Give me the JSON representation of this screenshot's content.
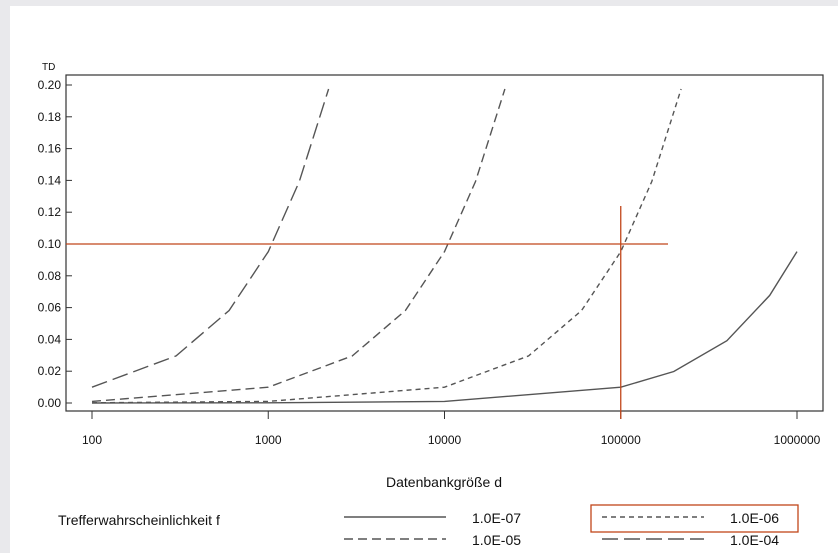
{
  "chart_data": {
    "type": "line",
    "x_scale": "log",
    "xlim": [
      100,
      1000000
    ],
    "ylim": [
      0.0,
      0.2
    ],
    "xlabel": "Datenbankgröße d",
    "ylabel": "TD",
    "x_ticks": [
      "100",
      "1000",
      "10000",
      "100000",
      "1000000"
    ],
    "y_ticks": [
      "0.00",
      "0.02",
      "0.04",
      "0.06",
      "0.08",
      "0.10",
      "0.12",
      "0.14",
      "0.16",
      "0.18",
      "0.20"
    ],
    "legend_title": "Trefferwahrscheinlichkeit f",
    "legend_position": "bottom",
    "series": [
      {
        "name": "1.0E-07",
        "style": "solid",
        "color": "#555555",
        "x": [
          100,
          1000,
          10000,
          100000,
          200000,
          400000,
          700000,
          1000000
        ],
        "y": [
          1e-05,
          0.0001,
          0.001,
          0.00995,
          0.0198,
          0.0392,
          0.0677,
          0.0952
        ]
      },
      {
        "name": "1.0E-06",
        "style": "short-dash",
        "color": "#555555",
        "x": [
          100,
          1000,
          10000,
          30000,
          60000,
          100000,
          150000,
          220000
        ],
        "y": [
          0.0001,
          0.001,
          0.00995,
          0.0296,
          0.0582,
          0.0952,
          0.1393,
          0.1975
        ]
      },
      {
        "name": "1.0E-05",
        "style": "medium-dash",
        "color": "#555555",
        "x": [
          100,
          1000,
          3000,
          6000,
          10000,
          15000,
          22000
        ],
        "y": [
          0.001,
          0.00995,
          0.0296,
          0.0582,
          0.0952,
          0.1393,
          0.1975
        ]
      },
      {
        "name": "1.0E-04",
        "style": "long-dash",
        "color": "#555555",
        "x": [
          100,
          300,
          600,
          1000,
          1500,
          2200
        ],
        "y": [
          0.00995,
          0.0296,
          0.0582,
          0.0952,
          0.1393,
          0.1975
        ]
      }
    ],
    "annotations": {
      "color": "#c1461a",
      "horizontal_line_y": 0.1,
      "vertical_line_x": 100000,
      "highlighted_legend_entry": "1.0E-06"
    }
  }
}
